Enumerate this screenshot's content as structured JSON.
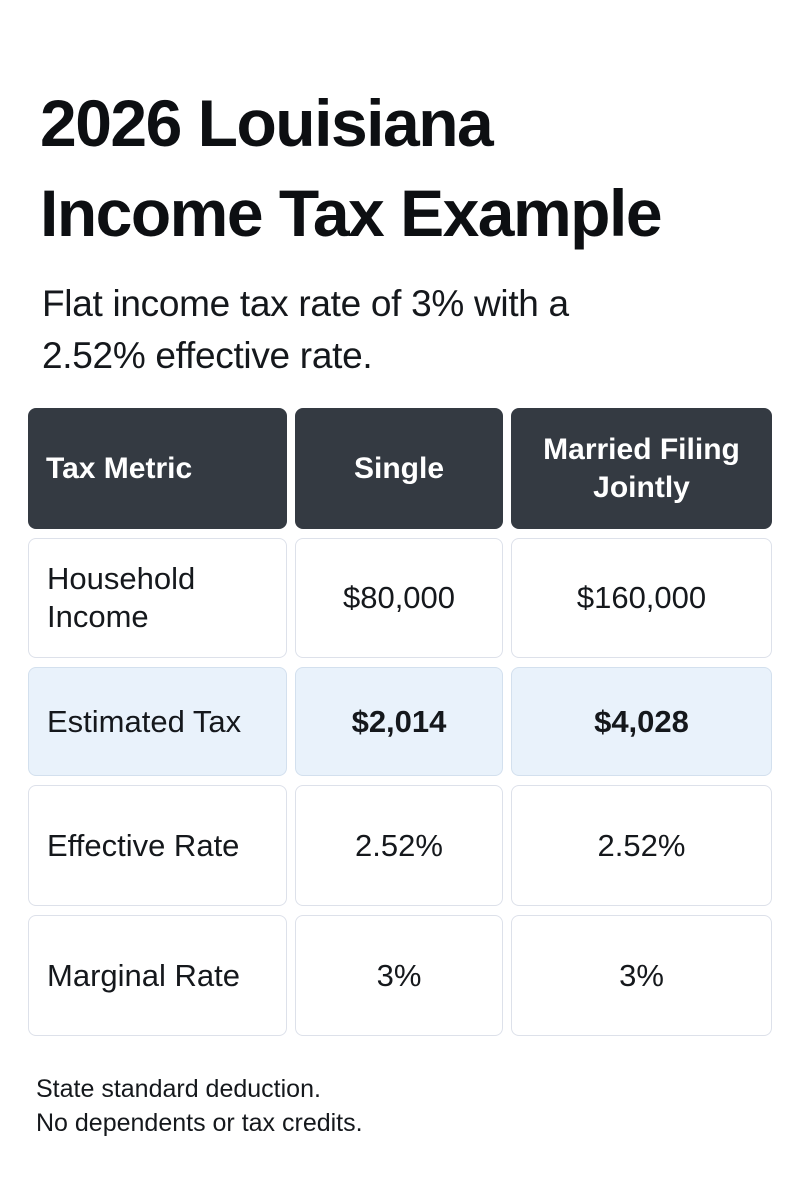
{
  "title": {
    "line1": "2026 Louisiana",
    "line2": "Income Tax Example"
  },
  "subtitle": {
    "line1": "Flat income tax rate of 3% with a",
    "line2": "2.52% effective rate."
  },
  "table": {
    "headers": [
      "Tax Metric",
      "Single",
      "Married Filing Jointly"
    ],
    "rows": [
      {
        "metric": "Household Income",
        "single": "$80,000",
        "married": "$160,000"
      },
      {
        "metric": "Estimated Tax",
        "single": "$2,014",
        "married": "$4,028"
      },
      {
        "metric": "Effective Rate",
        "single": "2.52%",
        "married": "2.52%"
      },
      {
        "metric": "Marginal Rate",
        "single": "3%",
        "married": "3%"
      }
    ]
  },
  "notes": {
    "line1": "State standard deduction.",
    "line2": "No dependents or tax credits."
  },
  "colors": {
    "header_bg": "#343a42",
    "highlight_row_bg": "#e9f2fb",
    "cell_border": "#dde1ea"
  }
}
